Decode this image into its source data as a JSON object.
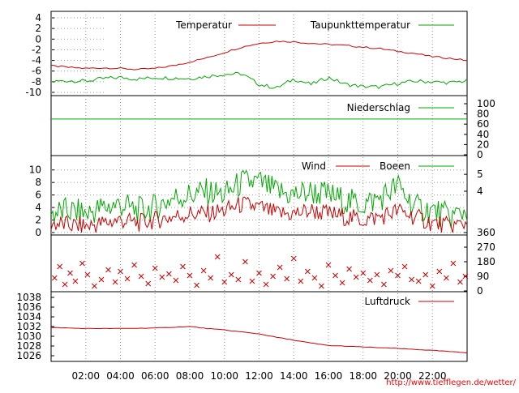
{
  "chart_data": [
    {
      "type": "line",
      "panel": "temperature",
      "ylim": [
        -10,
        4
      ],
      "yticks": [
        "4",
        "2",
        "0",
        "-2",
        "-4",
        "-6",
        "-8",
        "-10"
      ],
      "grid": "dotted horizontal, left",
      "legend_placement": "top-right",
      "series": [
        {
          "name": "Temperatur",
          "color": "#cc0000",
          "x_hours": [
            0,
            1,
            2,
            3,
            4,
            5,
            6,
            7,
            8,
            9,
            10,
            11,
            12,
            13,
            14,
            15,
            16,
            17,
            18,
            19,
            20,
            21,
            22,
            23,
            24
          ],
          "values": [
            -5.0,
            -5.3,
            -5.5,
            -5.4,
            -5.5,
            -5.7,
            -5.5,
            -5.0,
            -4.3,
            -3.5,
            -2.5,
            -1.5,
            -0.8,
            -0.4,
            -0.5,
            -0.8,
            -1.0,
            -1.2,
            -1.5,
            -1.8,
            -2.3,
            -2.7,
            -3.3,
            -3.6,
            -4.0
          ]
        },
        {
          "name": "Taupunkttemperatur",
          "color": "#00aa00",
          "x_hours": [
            0,
            1,
            2,
            3,
            4,
            5,
            6,
            7,
            8,
            9,
            10,
            11,
            12,
            13,
            14,
            15,
            16,
            17,
            18,
            19,
            20,
            21,
            22,
            23,
            24
          ],
          "values": [
            -8.0,
            -7.8,
            -7.9,
            -7.4,
            -7.2,
            -7.5,
            -7.2,
            -7.3,
            -7.4,
            -7.0,
            -6.6,
            -6.5,
            -8.5,
            -9.2,
            -7.5,
            -8.5,
            -7.2,
            -8.5,
            -8.9,
            -9.0,
            -8.3,
            -7.9,
            -8.0,
            -8.2,
            -7.8
          ]
        }
      ]
    },
    {
      "type": "line",
      "panel": "precipitation",
      "ylim": [
        0,
        100
      ],
      "yticks_right": [
        "100",
        "80",
        "60",
        "40",
        "20",
        "0"
      ],
      "legend_placement": "top-right",
      "series": [
        {
          "name": "Niederschlag",
          "color": "#00aa00",
          "x_hours": [
            0,
            24
          ],
          "values": [
            70,
            70
          ]
        }
      ]
    },
    {
      "type": "line",
      "panel": "wind",
      "ylim": [
        0,
        11
      ],
      "yticks": [
        "10",
        "8",
        "6",
        "4",
        "2",
        "0"
      ],
      "yticks_right": [
        "5",
        "4"
      ],
      "grid": "dotted horizontal",
      "legend_placement": "top-right",
      "series": [
        {
          "name": "Wind",
          "color": "#cc0000",
          "x_hours": [
            0,
            1,
            2,
            3,
            4,
            5,
            6,
            7,
            8,
            9,
            10,
            11,
            12,
            13,
            14,
            15,
            16,
            17,
            18,
            19,
            20,
            21,
            22,
            23,
            24
          ],
          "values": [
            1.5,
            1.2,
            1.0,
            1.5,
            2.0,
            1.5,
            2.0,
            2.5,
            3.0,
            3.0,
            3.5,
            4.5,
            4.0,
            3.0,
            3.0,
            3.5,
            3.0,
            2.5,
            2.0,
            2.5,
            3.5,
            2.5,
            1.5,
            1.0,
            1.5
          ]
        },
        {
          "name": "Boeen",
          "color": "#00aa00",
          "x_hours": [
            0,
            1,
            2,
            3,
            4,
            5,
            6,
            7,
            8,
            9,
            10,
            11,
            12,
            13,
            14,
            15,
            16,
            17,
            18,
            19,
            20,
            21,
            22,
            23,
            24
          ],
          "values": [
            3.0,
            3.5,
            3.0,
            4.0,
            4.5,
            3.5,
            4.0,
            5.5,
            6.0,
            6.5,
            6.0,
            8.0,
            8.0,
            6.5,
            6.0,
            6.5,
            6.0,
            5.0,
            4.5,
            5.5,
            7.5,
            4.0,
            3.5,
            2.5,
            3.5
          ]
        }
      ]
    },
    {
      "type": "scatter",
      "panel": "wind-direction",
      "ylim": [
        0,
        360
      ],
      "yticks_right": [
        "360",
        "270",
        "180",
        "90",
        "0"
      ],
      "marker": "x",
      "series": [
        {
          "color": "#cc0000",
          "x_hours": [
            0.2,
            0.5,
            0.8,
            1.1,
            1.4,
            1.8,
            2.1,
            2.5,
            2.9,
            3.3,
            3.7,
            4.0,
            4.4,
            4.8,
            5.2,
            5.6,
            6.0,
            6.4,
            6.8,
            7.2,
            7.6,
            8.0,
            8.4,
            8.8,
            9.2,
            9.6,
            10.0,
            10.4,
            10.8,
            11.2,
            11.6,
            12.0,
            12.4,
            12.8,
            13.2,
            13.6,
            14.0,
            14.4,
            14.8,
            15.2,
            15.6,
            16.0,
            16.4,
            16.8,
            17.2,
            17.6,
            18.0,
            18.4,
            18.8,
            19.2,
            19.6,
            20.0,
            20.4,
            20.8,
            21.2,
            21.6,
            22.0,
            22.4,
            22.8,
            23.2,
            23.6,
            23.9
          ],
          "values": [
            80,
            150,
            40,
            110,
            60,
            170,
            100,
            30,
            70,
            130,
            55,
            120,
            75,
            160,
            90,
            45,
            140,
            85,
            105,
            65,
            150,
            95,
            35,
            125,
            80,
            210,
            55,
            100,
            70,
            180,
            60,
            110,
            40,
            90,
            145,
            75,
            200,
            60,
            120,
            80,
            30,
            160,
            95,
            50,
            135,
            85,
            110,
            65,
            100,
            40,
            125,
            95,
            150,
            70,
            60,
            100,
            30,
            120,
            80,
            170,
            55,
            90
          ]
        }
      ]
    },
    {
      "type": "line",
      "panel": "pressure",
      "ylim": [
        1025.5,
        1038.5
      ],
      "yticks": [
        "1038",
        "1036",
        "1034",
        "1032",
        "1030",
        "1028",
        "1026"
      ],
      "xticks": [
        "02:00",
        "04:00",
        "06:00",
        "08:00",
        "10:00",
        "12:00",
        "14:00",
        "16:00",
        "18:00",
        "20:00",
        "22:00"
      ],
      "legend_placement": "top-right",
      "series": [
        {
          "name": "Luftdruck",
          "color": "#cc0000",
          "x_hours": [
            0,
            2,
            4,
            6,
            8,
            9,
            10,
            12,
            13,
            14,
            15,
            16,
            18,
            20,
            22,
            24
          ],
          "values": [
            1031.8,
            1031.6,
            1031.6,
            1031.7,
            1032.0,
            1031.6,
            1031.3,
            1030.5,
            1029.8,
            1029.2,
            1028.6,
            1028.1,
            1027.8,
            1027.5,
            1027.1,
            1026.6
          ]
        }
      ]
    }
  ],
  "footer": {
    "credit": "http://www.tiefflegen.de/wetter/"
  }
}
